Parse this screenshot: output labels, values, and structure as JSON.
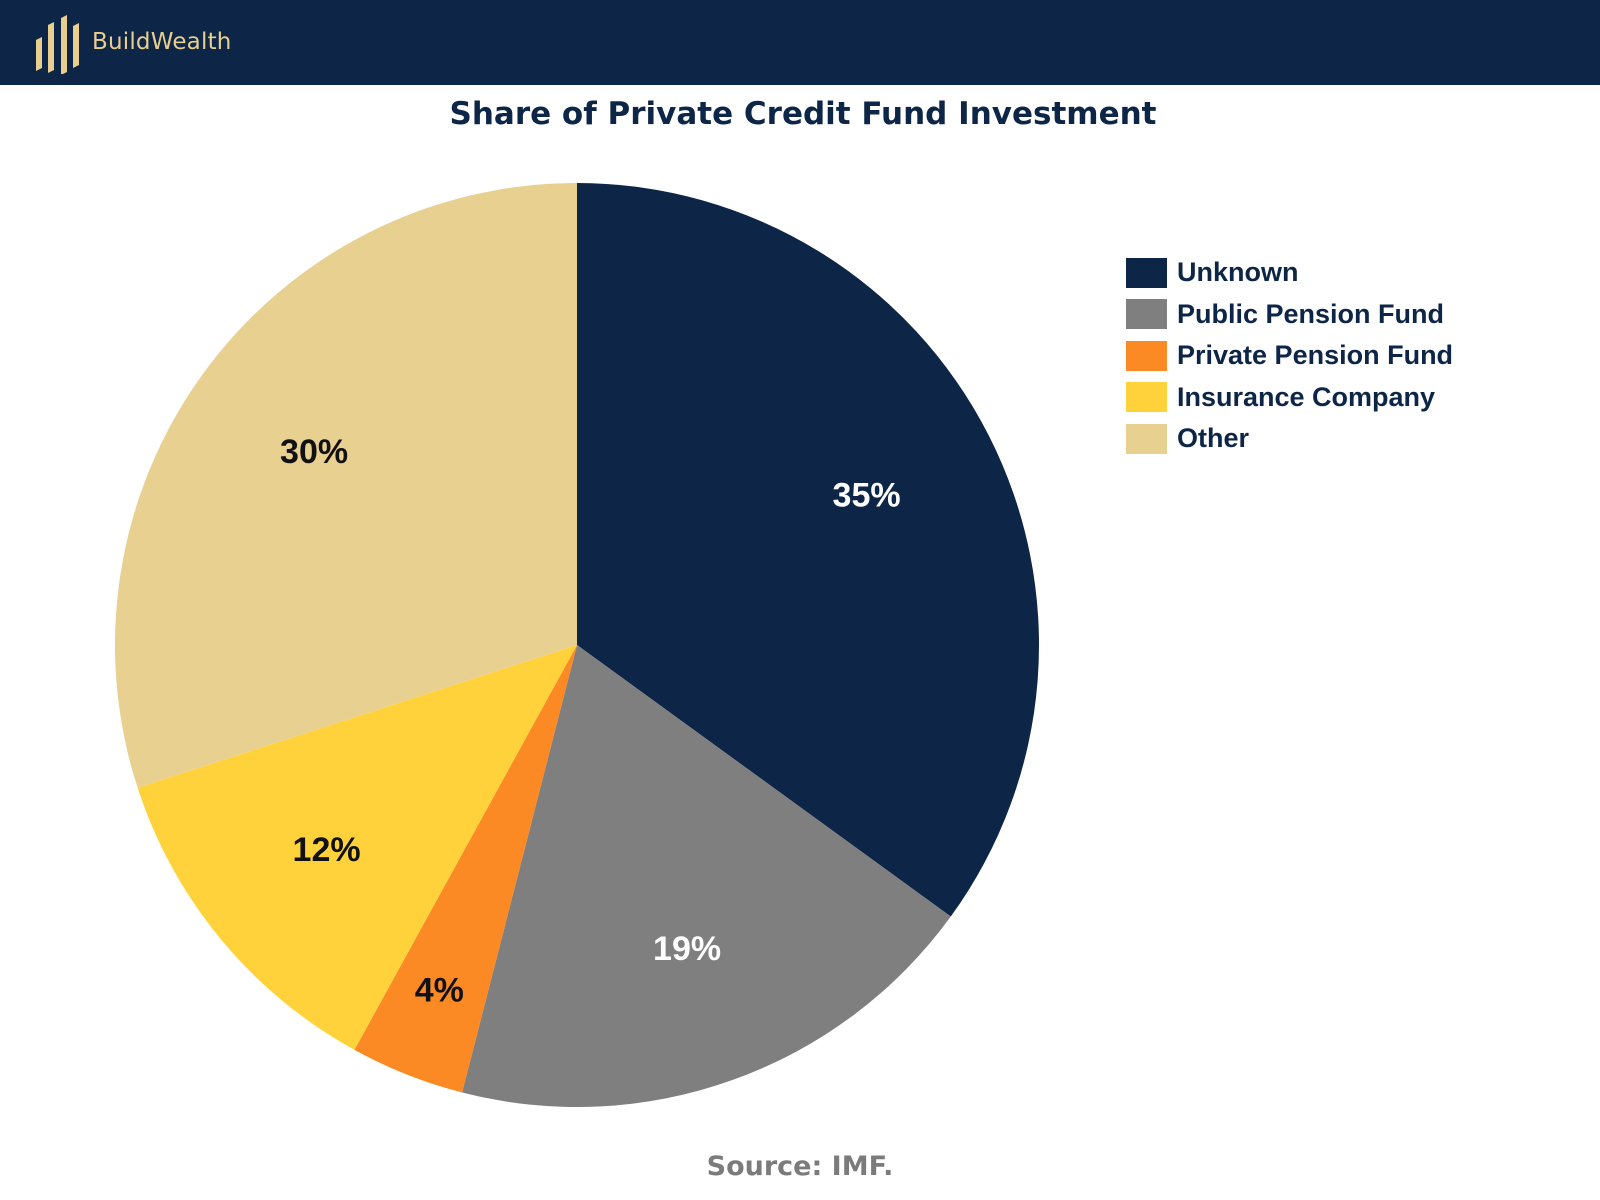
{
  "header": {
    "brand": "BuildWealth",
    "logo_icon": "buildwealth-bars-logo",
    "background_color": "#0d2546",
    "brand_color": "#e8cf8f"
  },
  "chart_data": {
    "type": "pie",
    "title": "Share of Private Credit Fund Investment",
    "legend_position": "right",
    "start_angle": "12 o'clock",
    "direction": "clockwise",
    "slices": [
      {
        "name": "Unknown",
        "value": 35,
        "label": "35%",
        "color": "#0d2546",
        "label_color": "#ffffff"
      },
      {
        "name": "Public Pension Fund",
        "value": 19,
        "label": "19%",
        "color": "#7f7f7f",
        "label_color": "#ffffff"
      },
      {
        "name": "Private Pension Fund",
        "value": 4,
        "label": "4%",
        "color": "#fb8a24",
        "label_color": "#111111"
      },
      {
        "name": "Insurance Company",
        "value": 12,
        "label": "12%",
        "color": "#ffd23b",
        "label_color": "#111111"
      },
      {
        "name": "Other",
        "value": 30,
        "label": "30%",
        "color": "#e8d090",
        "label_color": "#111111"
      }
    ]
  },
  "footer": {
    "source": "Source: IMF."
  }
}
